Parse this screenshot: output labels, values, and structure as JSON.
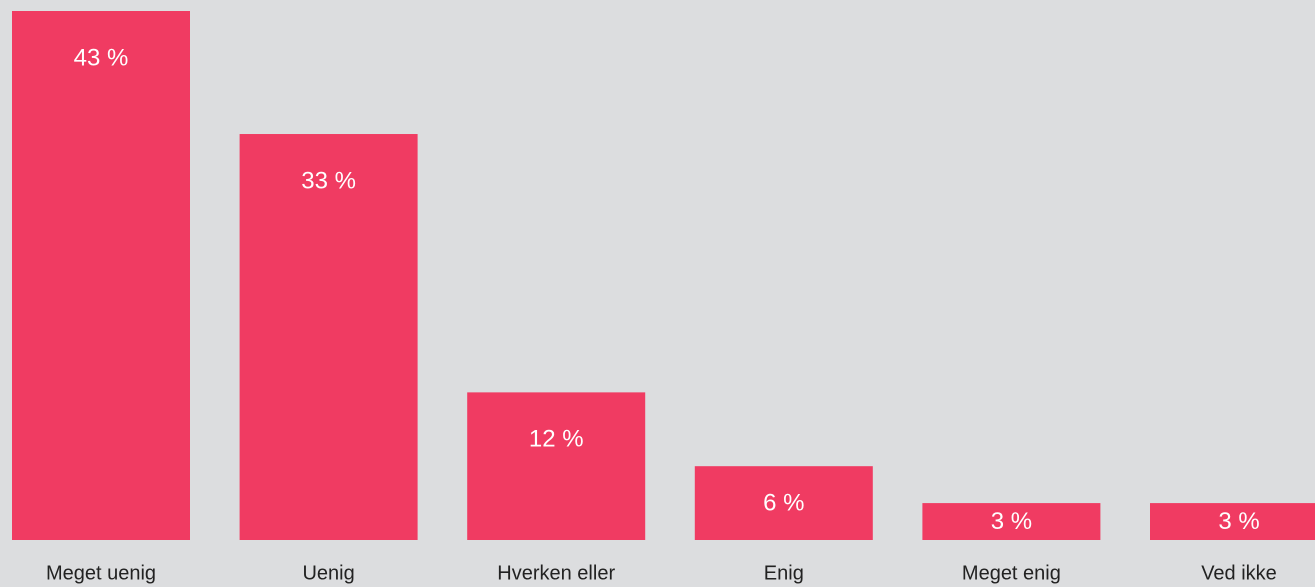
{
  "chart_data": {
    "type": "bar",
    "categories": [
      "Meget uenig",
      "Uenig",
      "Hverken eller",
      "Enig",
      "Meget enig",
      "Ved ikke"
    ],
    "values": [
      43,
      33,
      12,
      6,
      3,
      3
    ],
    "value_labels": [
      "43 %",
      "33 %",
      "12 %",
      "6 %",
      "3 %",
      "3 %"
    ],
    "color": "#f03b62"
  }
}
